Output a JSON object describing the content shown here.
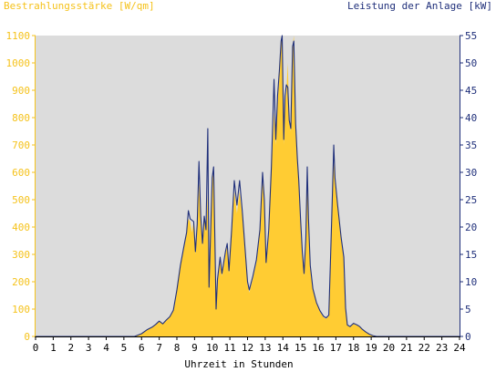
{
  "chart_data": {
    "type": "area",
    "left_axis_label": "Bestrahlungsstärke [W/qm]",
    "right_axis_label": "Leistung der Anlage [kW]",
    "xlabel": "Uhrzeit in Stunden",
    "xlim": [
      0,
      24
    ],
    "x_ticks": [
      "0",
      "1",
      "2",
      "3",
      "4",
      "5",
      "6",
      "7",
      "8",
      "9",
      "10",
      "11",
      "12",
      "13",
      "14",
      "15",
      "16",
      "17",
      "18",
      "19",
      "20",
      "21",
      "22",
      "23",
      "24"
    ],
    "y_left_lim": [
      0,
      1100
    ],
    "y_left_ticks": [
      "0",
      "100",
      "200",
      "300",
      "400",
      "500",
      "600",
      "700",
      "800",
      "900",
      "1000",
      "1100"
    ],
    "y_right_lim": [
      0,
      55
    ],
    "y_right_ticks": [
      "0",
      "5",
      "10",
      "15",
      "20",
      "25",
      "30",
      "35",
      "40",
      "45",
      "50",
      "55"
    ],
    "grid": false,
    "series": [
      {
        "name": "Bestrahlungsstärke [W/qm]",
        "color": "#ffcc33",
        "axis": "left",
        "points": [
          [
            0,
            0
          ],
          [
            5.6,
            0
          ],
          [
            6.0,
            10
          ],
          [
            6.3,
            25
          ],
          [
            6.6,
            35
          ],
          [
            6.8,
            45
          ],
          [
            7.0,
            55
          ],
          [
            7.2,
            45
          ],
          [
            7.4,
            60
          ],
          [
            7.6,
            70
          ],
          [
            7.8,
            95
          ],
          [
            8.0,
            170
          ],
          [
            8.2,
            260
          ],
          [
            8.4,
            330
          ],
          [
            8.55,
            380
          ],
          [
            8.65,
            430
          ],
          [
            8.75,
            420
          ],
          [
            8.85,
            380
          ],
          [
            8.95,
            420
          ],
          [
            9.05,
            300
          ],
          [
            9.15,
            400
          ],
          [
            9.25,
            560
          ],
          [
            9.35,
            430
          ],
          [
            9.45,
            330
          ],
          [
            9.55,
            430
          ],
          [
            9.65,
            380
          ],
          [
            9.75,
            520
          ],
          [
            9.82,
            180
          ],
          [
            9.9,
            350
          ],
          [
            10.0,
            570
          ],
          [
            10.08,
            600
          ],
          [
            10.15,
            350
          ],
          [
            10.22,
            100
          ],
          [
            10.3,
            200
          ],
          [
            10.45,
            280
          ],
          [
            10.55,
            220
          ],
          [
            10.65,
            260
          ],
          [
            10.75,
            300
          ],
          [
            10.85,
            330
          ],
          [
            10.95,
            230
          ],
          [
            11.1,
            380
          ],
          [
            11.25,
            530
          ],
          [
            11.4,
            450
          ],
          [
            11.55,
            530
          ],
          [
            11.7,
            440
          ],
          [
            11.85,
            320
          ],
          [
            12.0,
            190
          ],
          [
            12.1,
            160
          ],
          [
            12.3,
            210
          ],
          [
            12.5,
            270
          ],
          [
            12.7,
            380
          ],
          [
            12.85,
            570
          ],
          [
            12.95,
            480
          ],
          [
            13.05,
            260
          ],
          [
            13.2,
            380
          ],
          [
            13.35,
            600
          ],
          [
            13.5,
            820
          ],
          [
            13.6,
            700
          ],
          [
            13.7,
            850
          ],
          [
            13.8,
            950
          ],
          [
            13.9,
            1080
          ],
          [
            13.96,
            1100
          ],
          [
            14.05,
            700
          ],
          [
            14.12,
            850
          ],
          [
            14.2,
            900
          ],
          [
            14.28,
            1000
          ],
          [
            14.36,
            780
          ],
          [
            14.45,
            750
          ],
          [
            14.55,
            1060
          ],
          [
            14.62,
            1100
          ],
          [
            14.72,
            780
          ],
          [
            14.82,
            640
          ],
          [
            14.9,
            560
          ],
          [
            15.0,
            420
          ],
          [
            15.1,
            300
          ],
          [
            15.2,
            220
          ],
          [
            15.3,
            350
          ],
          [
            15.38,
            560
          ],
          [
            15.45,
            420
          ],
          [
            15.55,
            250
          ],
          [
            15.7,
            170
          ],
          [
            15.9,
            120
          ],
          [
            16.1,
            90
          ],
          [
            16.3,
            70
          ],
          [
            16.45,
            65
          ],
          [
            16.6,
            75
          ],
          [
            16.7,
            280
          ],
          [
            16.8,
            500
          ],
          [
            16.88,
            640
          ],
          [
            16.95,
            560
          ],
          [
            17.1,
            470
          ],
          [
            17.3,
            350
          ],
          [
            17.45,
            280
          ],
          [
            17.55,
            100
          ],
          [
            17.65,
            40
          ],
          [
            17.8,
            35
          ],
          [
            18.0,
            45
          ],
          [
            18.2,
            40
          ],
          [
            18.35,
            35
          ],
          [
            18.5,
            25
          ],
          [
            18.7,
            15
          ],
          [
            18.9,
            8
          ],
          [
            19.1,
            3
          ],
          [
            19.3,
            0
          ],
          [
            24,
            0
          ]
        ]
      },
      {
        "name": "Leistung der Anlage [kW]",
        "color": "#1f2f7a",
        "axis": "right",
        "points": [
          [
            0,
            0
          ],
          [
            5.6,
            0
          ],
          [
            6.0,
            0.5
          ],
          [
            6.3,
            1.2
          ],
          [
            6.6,
            1.7
          ],
          [
            6.8,
            2.2
          ],
          [
            7.0,
            2.8
          ],
          [
            7.2,
            2.3
          ],
          [
            7.4,
            3.0
          ],
          [
            7.6,
            3.6
          ],
          [
            7.8,
            4.8
          ],
          [
            8.0,
            8.5
          ],
          [
            8.2,
            13.0
          ],
          [
            8.4,
            16.5
          ],
          [
            8.55,
            19.0
          ],
          [
            8.65,
            23.0
          ],
          [
            8.75,
            21.5
          ],
          [
            8.95,
            21.0
          ],
          [
            9.05,
            15.5
          ],
          [
            9.15,
            20.5
          ],
          [
            9.25,
            32.0
          ],
          [
            9.35,
            22.0
          ],
          [
            9.45,
            17.0
          ],
          [
            9.55,
            22.0
          ],
          [
            9.65,
            19.5
          ],
          [
            9.75,
            38.0
          ],
          [
            9.82,
            9.0
          ],
          [
            9.9,
            18.0
          ],
          [
            10.0,
            29.0
          ],
          [
            10.08,
            31.0
          ],
          [
            10.15,
            18.0
          ],
          [
            10.22,
            5.0
          ],
          [
            10.3,
            10.5
          ],
          [
            10.45,
            14.5
          ],
          [
            10.55,
            11.5
          ],
          [
            10.65,
            13.5
          ],
          [
            10.75,
            15.5
          ],
          [
            10.85,
            17.0
          ],
          [
            10.95,
            12.0
          ],
          [
            11.1,
            19.5
          ],
          [
            11.25,
            28.5
          ],
          [
            11.4,
            24.0
          ],
          [
            11.55,
            28.5
          ],
          [
            11.7,
            23.0
          ],
          [
            11.85,
            16.5
          ],
          [
            12.0,
            10.0
          ],
          [
            12.1,
            8.5
          ],
          [
            12.3,
            11.0
          ],
          [
            12.5,
            14.0
          ],
          [
            12.7,
            19.5
          ],
          [
            12.85,
            30.0
          ],
          [
            12.95,
            25.0
          ],
          [
            13.05,
            13.5
          ],
          [
            13.2,
            19.5
          ],
          [
            13.35,
            31.0
          ],
          [
            13.5,
            47.0
          ],
          [
            13.6,
            36.0
          ],
          [
            13.7,
            44.0
          ],
          [
            13.8,
            48.5
          ],
          [
            13.9,
            54.0
          ],
          [
            13.96,
            55.0
          ],
          [
            14.05,
            36.0
          ],
          [
            14.12,
            44.0
          ],
          [
            14.2,
            46.0
          ],
          [
            14.28,
            45.5
          ],
          [
            14.36,
            39.5
          ],
          [
            14.45,
            38.0
          ],
          [
            14.55,
            53.0
          ],
          [
            14.62,
            54.0
          ],
          [
            14.72,
            39.0
          ],
          [
            14.82,
            32.5
          ],
          [
            14.9,
            28.5
          ],
          [
            15.0,
            21.5
          ],
          [
            15.1,
            15.5
          ],
          [
            15.2,
            11.5
          ],
          [
            15.3,
            18.0
          ],
          [
            15.38,
            31.0
          ],
          [
            15.45,
            21.5
          ],
          [
            15.55,
            13.0
          ],
          [
            15.7,
            8.7
          ],
          [
            15.9,
            6.2
          ],
          [
            16.1,
            4.7
          ],
          [
            16.3,
            3.7
          ],
          [
            16.45,
            3.4
          ],
          [
            16.6,
            3.9
          ],
          [
            16.7,
            14.5
          ],
          [
            16.8,
            25.5
          ],
          [
            16.88,
            35.0
          ],
          [
            16.95,
            29.0
          ],
          [
            17.1,
            24.0
          ],
          [
            17.3,
            18.0
          ],
          [
            17.45,
            14.5
          ],
          [
            17.55,
            5.2
          ],
          [
            17.65,
            2.1
          ],
          [
            17.8,
            1.8
          ],
          [
            18.0,
            2.4
          ],
          [
            18.2,
            2.1
          ],
          [
            18.35,
            1.8
          ],
          [
            18.5,
            1.3
          ],
          [
            18.7,
            0.8
          ],
          [
            18.9,
            0.4
          ],
          [
            19.1,
            0.15
          ],
          [
            19.3,
            0
          ],
          [
            24,
            0
          ]
        ]
      }
    ]
  },
  "colors": {
    "plot_background": "#dcdcdc",
    "left_axis": "#f5c21b",
    "right_axis": "#1f2f7a",
    "x_axis": "#000000"
  }
}
